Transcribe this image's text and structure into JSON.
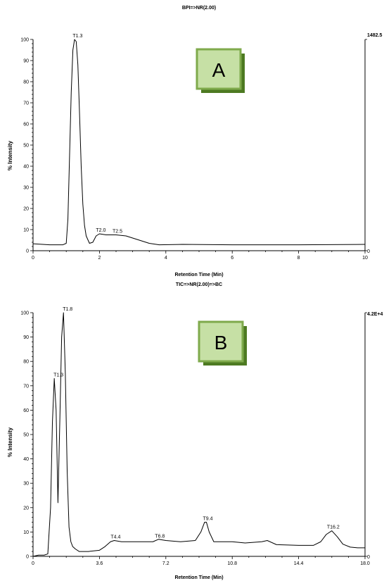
{
  "chart_data": [
    {
      "type": "line",
      "panel_label": "A",
      "title": "BPI=>NR(2.00)",
      "xlabel": "Retention Time (Min)",
      "ylabel": "% Intensity",
      "xlim": [
        0,
        10
      ],
      "ylim": [
        0,
        100
      ],
      "x_ticks": [
        "0",
        "2",
        "4",
        "6",
        "8",
        "10"
      ],
      "y_ticks": [
        "0",
        "10",
        "20",
        "30",
        "40",
        "50",
        "60",
        "70",
        "80",
        "90",
        "100"
      ],
      "right_axis_label": "1482.5",
      "right_axis_zero": "0",
      "peak_labels": [
        {
          "text": "T1.3",
          "x": 1.3,
          "y": 100
        },
        {
          "text": "T2.0",
          "x": 2.0,
          "y": 8
        },
        {
          "text": "T2.5",
          "x": 2.5,
          "y": 7.5
        }
      ],
      "series": [
        {
          "x": [
            0,
            0.5,
            0.9,
            1.0,
            1.05,
            1.1,
            1.15,
            1.2,
            1.25,
            1.3,
            1.35,
            1.4,
            1.45,
            1.5,
            1.55,
            1.6,
            1.7,
            1.8,
            1.9,
            2.0,
            2.2,
            2.5,
            2.8,
            3.0,
            3.2,
            3.5,
            3.8,
            4.5,
            6,
            8,
            10
          ],
          "y": [
            3.3,
            2.8,
            2.8,
            3.5,
            15,
            45,
            75,
            95,
            100,
            99,
            88,
            65,
            40,
            22,
            12,
            7,
            3.5,
            4,
            7,
            8,
            7.5,
            7.5,
            7,
            6,
            5,
            3.5,
            2.8,
            3,
            2.8,
            2.8,
            3
          ]
        }
      ]
    },
    {
      "type": "line",
      "panel_label": "B",
      "title": "TIC=>NR(2.00)=>BC",
      "xlabel": "Retention Time (Min)",
      "ylabel": "% Intensity",
      "xlim": [
        0,
        18
      ],
      "ylim": [
        0,
        100
      ],
      "x_ticks": [
        "0",
        "3.6",
        "7.2",
        "10.8",
        "14.4",
        "18.0"
      ],
      "y_ticks": [
        "0",
        "10",
        "20",
        "30",
        "40",
        "50",
        "60",
        "70",
        "80",
        "90",
        "100"
      ],
      "right_axis_label": "4.2E+4",
      "right_axis_zero": "0",
      "peak_labels": [
        {
          "text": "T1.3",
          "x": 1.3,
          "y": 73
        },
        {
          "text": "T1.8",
          "x": 1.8,
          "y": 100
        },
        {
          "text": "T4.4",
          "x": 4.4,
          "y": 6.5
        },
        {
          "text": "T6.8",
          "x": 6.8,
          "y": 6.8
        },
        {
          "text": "T9.4",
          "x": 9.4,
          "y": 14
        },
        {
          "text": "T16.2",
          "x": 16.2,
          "y": 10.5
        }
      ],
      "series": [
        {
          "x": [
            0,
            0.3,
            0.6,
            0.8,
            0.95,
            1.05,
            1.15,
            1.25,
            1.35,
            1.45,
            1.55,
            1.65,
            1.75,
            1.85,
            1.95,
            2.05,
            2.15,
            2.3,
            2.5,
            3.0,
            3.6,
            3.9,
            4.2,
            4.4,
            4.8,
            5.5,
            6.5,
            6.8,
            7.2,
            8.0,
            8.8,
            9.1,
            9.3,
            9.4,
            9.55,
            9.8,
            10.8,
            11.5,
            12.4,
            12.7,
            13.2,
            14.4,
            15.2,
            15.6,
            15.9,
            16.2,
            16.5,
            16.8,
            17.2,
            17.6,
            18.0
          ],
          "y": [
            0,
            0.5,
            0.5,
            1,
            20,
            55,
            73,
            60,
            22,
            55,
            90,
            100,
            75,
            35,
            12,
            6,
            4,
            3,
            2,
            2,
            2.5,
            4,
            6,
            6.5,
            6,
            6,
            6,
            7,
            6.5,
            6,
            6.5,
            10,
            14,
            14,
            10,
            6,
            6,
            5.5,
            6,
            6.5,
            4.8,
            4.5,
            4.5,
            6,
            9,
            10.5,
            8,
            5,
            3.8,
            3.5,
            3.5
          ]
        }
      ]
    }
  ]
}
